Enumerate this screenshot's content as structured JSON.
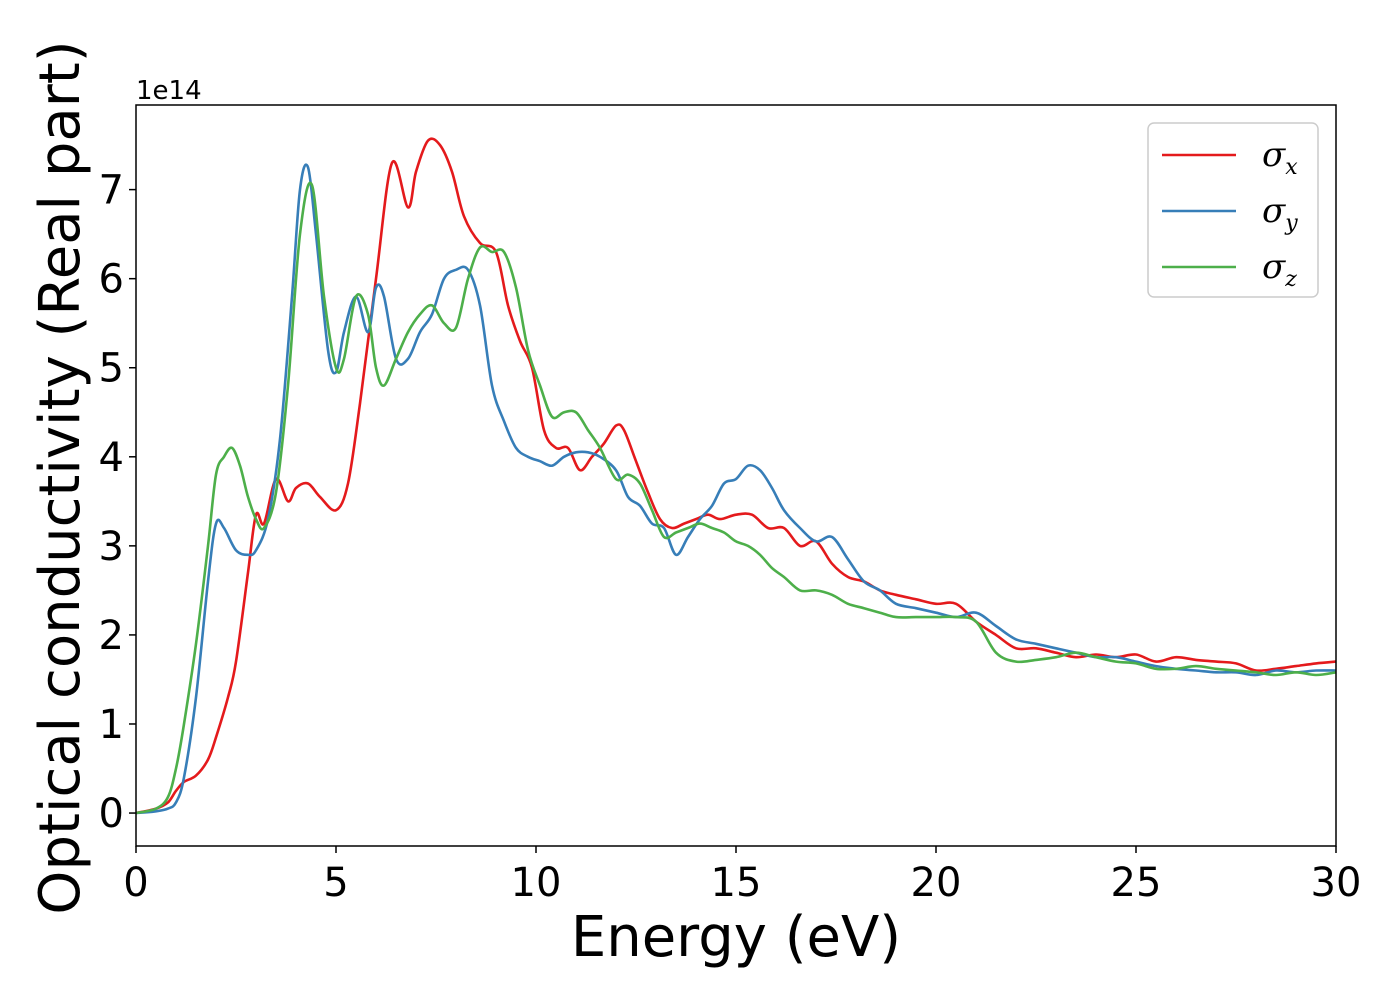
{
  "chart_data": {
    "type": "line",
    "xlabel": "Energy (eV)",
    "ylabel": "Optical conductivity (Real part)",
    "y_offset_label": "1e14",
    "y_scale": 100000000000000.0,
    "xlim": [
      0,
      30
    ],
    "ylim": [
      -0.37,
      7.95
    ],
    "xticks": [
      0,
      5,
      10,
      15,
      20,
      25,
      30
    ],
    "yticks": [
      0,
      1,
      2,
      3,
      4,
      5,
      6,
      7
    ],
    "grid": false,
    "legend_position": "top-right",
    "series": [
      {
        "name": "σx",
        "legend_base": "σ",
        "legend_sub": "x",
        "color": "#e41a1c",
        "x": [
          0,
          0.5,
          0.8,
          1.0,
          1.2,
          1.5,
          1.8,
          2.0,
          2.3,
          2.5,
          2.8,
          3.0,
          3.2,
          3.5,
          3.8,
          4.0,
          4.3,
          4.6,
          5.0,
          5.3,
          5.6,
          6.0,
          6.4,
          6.8,
          7.0,
          7.3,
          7.6,
          7.9,
          8.2,
          8.6,
          9.0,
          9.3,
          9.6,
          9.9,
          10.2,
          10.5,
          10.8,
          11.1,
          11.4,
          11.7,
          12.0,
          12.2,
          12.5,
          12.8,
          13.1,
          13.4,
          13.7,
          14.0,
          14.3,
          14.6,
          15.0,
          15.4,
          15.8,
          16.2,
          16.6,
          17.0,
          17.4,
          17.8,
          18.2,
          18.6,
          19.0,
          19.5,
          20.0,
          20.5,
          21.0,
          21.5,
          22.0,
          22.5,
          23.0,
          23.5,
          24.0,
          24.5,
          25.0,
          25.5,
          26.0,
          26.5,
          27.0,
          27.5,
          28.0,
          28.5,
          29.0,
          29.5,
          30.0
        ],
        "y": [
          0,
          0.05,
          0.12,
          0.25,
          0.35,
          0.42,
          0.6,
          0.85,
          1.3,
          1.7,
          2.7,
          3.35,
          3.25,
          3.75,
          3.5,
          3.65,
          3.7,
          3.55,
          3.4,
          3.7,
          4.6,
          6.0,
          7.3,
          6.8,
          7.2,
          7.55,
          7.5,
          7.2,
          6.7,
          6.4,
          6.3,
          5.7,
          5.3,
          5.0,
          4.3,
          4.1,
          4.1,
          3.85,
          4.0,
          4.15,
          4.35,
          4.3,
          3.95,
          3.6,
          3.3,
          3.2,
          3.25,
          3.3,
          3.35,
          3.3,
          3.35,
          3.35,
          3.2,
          3.2,
          3.0,
          3.05,
          2.8,
          2.65,
          2.6,
          2.5,
          2.45,
          2.4,
          2.35,
          2.35,
          2.15,
          2.0,
          1.85,
          1.85,
          1.8,
          1.75,
          1.78,
          1.75,
          1.78,
          1.7,
          1.75,
          1.72,
          1.7,
          1.68,
          1.6,
          1.62,
          1.65,
          1.68,
          1.7
        ]
      },
      {
        "name": "σy",
        "legend_base": "σ",
        "legend_sub": "y",
        "color": "#377eb8",
        "x": [
          0,
          0.5,
          0.8,
          1.0,
          1.2,
          1.5,
          1.8,
          2.0,
          2.2,
          2.5,
          2.8,
          3.0,
          3.3,
          3.6,
          3.9,
          4.1,
          4.3,
          4.5,
          4.8,
          5.0,
          5.2,
          5.5,
          5.8,
          6.0,
          6.2,
          6.5,
          6.8,
          7.1,
          7.4,
          7.7,
          8.0,
          8.3,
          8.6,
          8.9,
          9.2,
          9.5,
          9.8,
          10.1,
          10.4,
          10.7,
          11.0,
          11.3,
          11.6,
          12.0,
          12.3,
          12.6,
          12.9,
          13.2,
          13.5,
          13.8,
          14.1,
          14.4,
          14.7,
          15.0,
          15.3,
          15.6,
          15.9,
          16.2,
          16.6,
          17.0,
          17.4,
          17.8,
          18.2,
          18.6,
          19.0,
          19.5,
          20.0,
          20.5,
          21.0,
          21.5,
          22.0,
          22.5,
          23.0,
          23.5,
          24.0,
          24.5,
          25.0,
          25.5,
          26.0,
          26.5,
          27.0,
          27.5,
          28.0,
          28.5,
          29.0,
          29.5,
          30.0
        ],
        "y": [
          0,
          0.02,
          0.05,
          0.12,
          0.4,
          1.3,
          2.6,
          3.25,
          3.2,
          2.95,
          2.9,
          2.95,
          3.3,
          4.2,
          5.8,
          7.0,
          7.25,
          6.5,
          5.2,
          4.95,
          5.4,
          5.8,
          5.4,
          5.9,
          5.8,
          5.1,
          5.1,
          5.4,
          5.6,
          6.0,
          6.1,
          6.1,
          5.7,
          4.8,
          4.4,
          4.1,
          4.0,
          3.95,
          3.9,
          4.0,
          4.05,
          4.05,
          4.0,
          3.85,
          3.55,
          3.45,
          3.25,
          3.2,
          2.9,
          3.1,
          3.3,
          3.45,
          3.7,
          3.75,
          3.9,
          3.85,
          3.65,
          3.4,
          3.2,
          3.05,
          3.1,
          2.85,
          2.6,
          2.5,
          2.35,
          2.3,
          2.25,
          2.2,
          2.25,
          2.1,
          1.95,
          1.9,
          1.85,
          1.8,
          1.75,
          1.75,
          1.7,
          1.65,
          1.62,
          1.6,
          1.58,
          1.58,
          1.55,
          1.6,
          1.58,
          1.6,
          1.6
        ]
      },
      {
        "name": "σz",
        "legend_base": "σ",
        "legend_sub": "z",
        "color": "#4daf4a",
        "x": [
          0,
          0.5,
          0.8,
          1.0,
          1.2,
          1.5,
          1.8,
          2.0,
          2.2,
          2.4,
          2.6,
          2.8,
          3.0,
          3.2,
          3.5,
          3.8,
          4.1,
          4.4,
          4.7,
          5.0,
          5.2,
          5.5,
          5.8,
          6.0,
          6.2,
          6.5,
          6.8,
          7.1,
          7.4,
          7.7,
          8.0,
          8.3,
          8.6,
          8.9,
          9.2,
          9.5,
          9.8,
          10.1,
          10.4,
          10.7,
          11.0,
          11.3,
          11.6,
          12.0,
          12.3,
          12.6,
          12.9,
          13.2,
          13.5,
          13.8,
          14.1,
          14.4,
          14.7,
          15.0,
          15.3,
          15.6,
          15.9,
          16.2,
          16.6,
          17.0,
          17.4,
          17.8,
          18.2,
          18.6,
          19.0,
          19.5,
          20.0,
          20.5,
          21.0,
          21.5,
          22.0,
          22.5,
          23.0,
          23.5,
          24.0,
          24.5,
          25.0,
          25.5,
          26.0,
          26.5,
          27.0,
          27.5,
          28.0,
          28.5,
          29.0,
          29.5,
          30.0
        ],
        "y": [
          0,
          0.05,
          0.18,
          0.5,
          1.0,
          1.9,
          3.0,
          3.8,
          4.0,
          4.1,
          3.9,
          3.55,
          3.3,
          3.2,
          3.6,
          4.8,
          6.5,
          7.05,
          5.8,
          5.0,
          5.1,
          5.8,
          5.6,
          5.0,
          4.8,
          5.1,
          5.4,
          5.6,
          5.7,
          5.5,
          5.45,
          6.0,
          6.35,
          6.3,
          6.3,
          5.9,
          5.2,
          4.8,
          4.45,
          4.5,
          4.5,
          4.3,
          4.1,
          3.75,
          3.8,
          3.7,
          3.4,
          3.1,
          3.15,
          3.2,
          3.25,
          3.2,
          3.15,
          3.05,
          3.0,
          2.9,
          2.75,
          2.65,
          2.5,
          2.5,
          2.45,
          2.35,
          2.3,
          2.25,
          2.2,
          2.2,
          2.2,
          2.2,
          2.15,
          1.8,
          1.7,
          1.72,
          1.75,
          1.8,
          1.75,
          1.7,
          1.68,
          1.62,
          1.62,
          1.65,
          1.62,
          1.6,
          1.58,
          1.55,
          1.58,
          1.55,
          1.58
        ]
      }
    ]
  }
}
